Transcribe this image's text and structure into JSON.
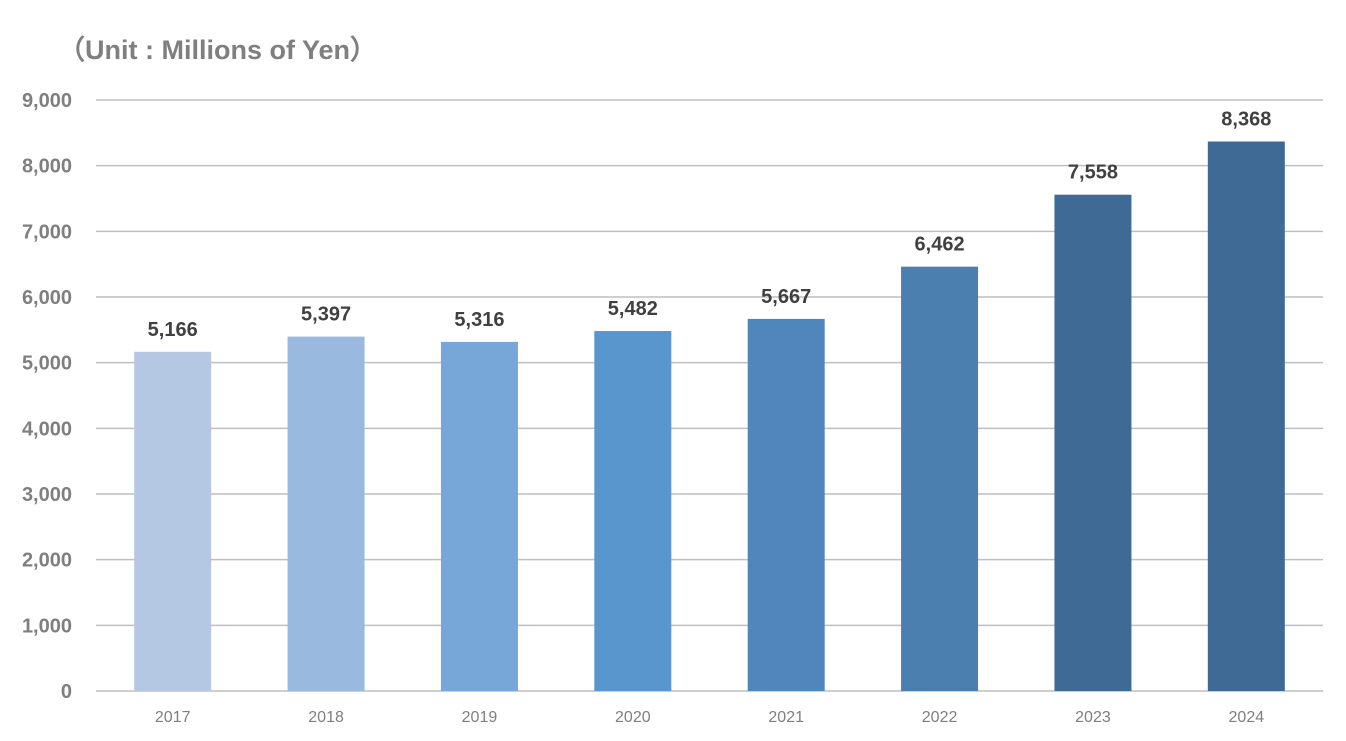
{
  "chart_data": {
    "type": "bar",
    "title": "（Unit : Millions of Yen）",
    "xlabel": "",
    "ylabel": "",
    "categories": [
      "2017",
      "2018",
      "2019",
      "2020",
      "2021",
      "2022",
      "2023",
      "2024"
    ],
    "values": [
      5166,
      5397,
      5316,
      5482,
      5667,
      6462,
      7558,
      8368
    ],
    "value_labels": [
      "5,166",
      "5,397",
      "5,316",
      "5,482",
      "5,667",
      "6,462",
      "7,558",
      "8,368"
    ],
    "ylim": [
      0,
      9000
    ],
    "yticks": [
      0,
      1000,
      2000,
      3000,
      4000,
      5000,
      6000,
      7000,
      8000,
      9000
    ],
    "ytick_labels": [
      "0",
      "1,000",
      "2,000",
      "3,000",
      "4,000",
      "5,000",
      "6,000",
      "7,000",
      "8,000",
      "9,000"
    ],
    "grid": true,
    "legend": "none",
    "bar_colors": [
      "#b4c8e4",
      "#99b9df",
      "#77a7d8",
      "#5896cd",
      "#4f87bc",
      "#4b7fb0",
      "#3f6a95",
      "#3f6a95"
    ]
  }
}
